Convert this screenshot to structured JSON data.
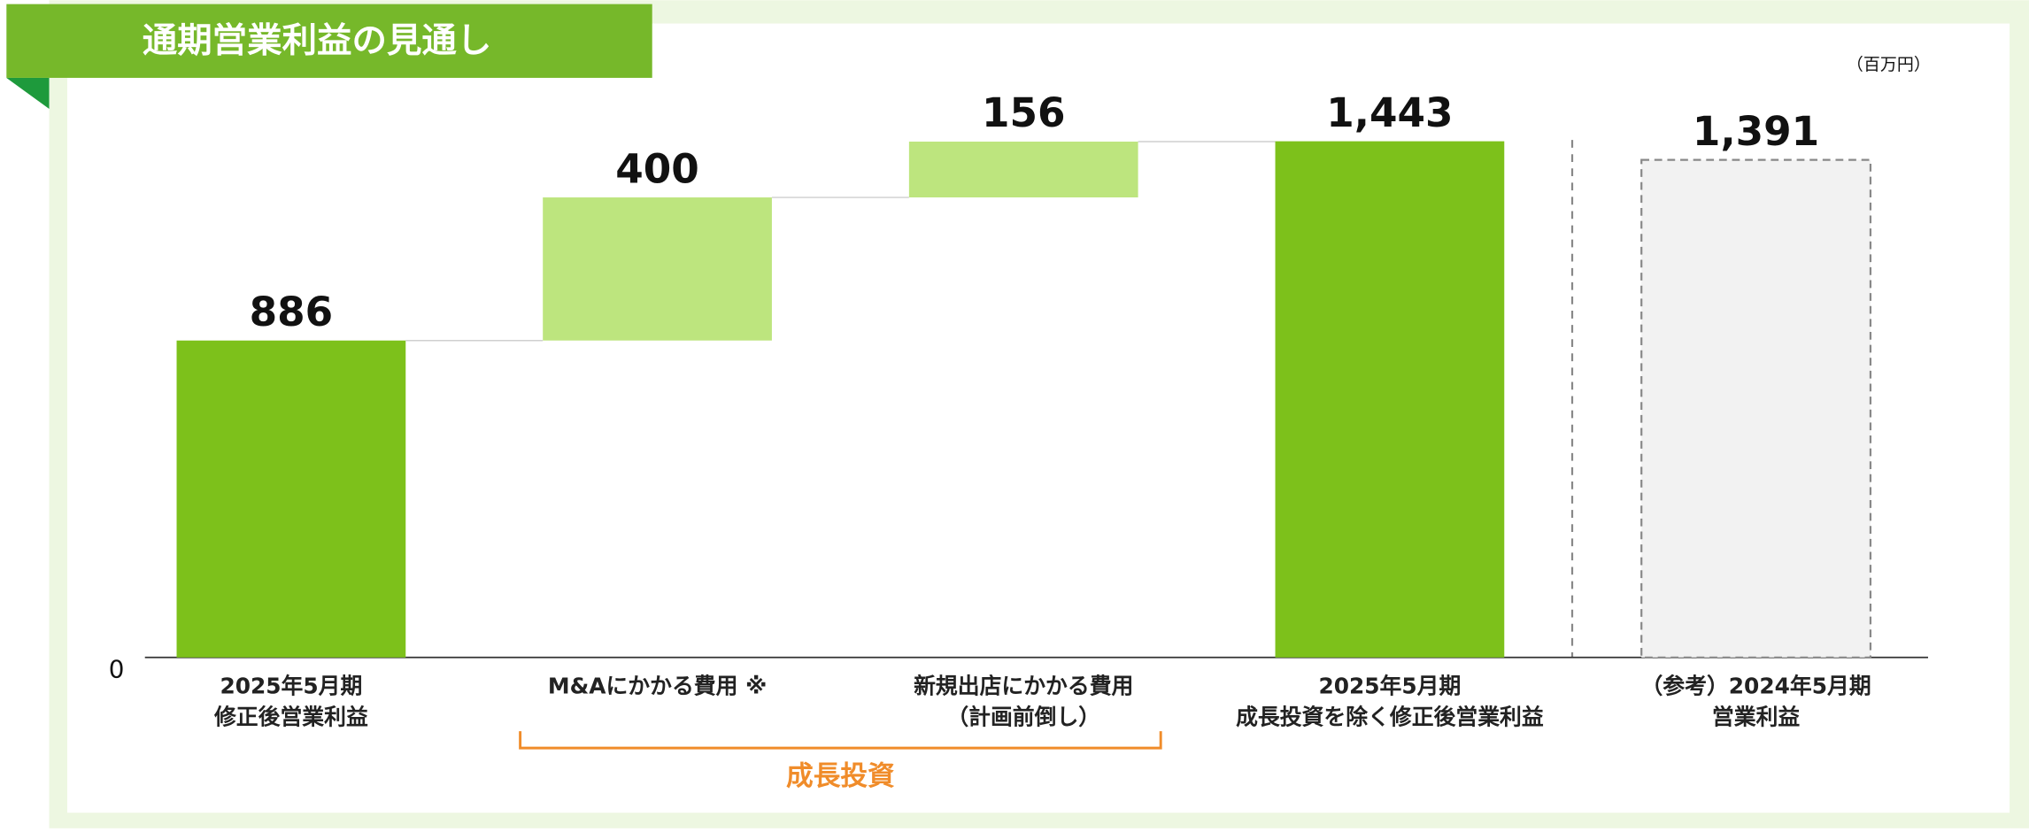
{
  "chart_data": {
    "type": "waterfall",
    "title": "通期営業利益の見通し",
    "unit_label": "（百万円）",
    "categories": [
      [
        "2025年5月期",
        "修正後営業利益"
      ],
      [
        "M&Aにかかる費用 ※"
      ],
      [
        "新規出店にかかる費用",
        "（計画前倒し）"
      ],
      [
        "2025年5月期",
        "成長投資を除く修正後営業利益"
      ],
      [
        "（参考）2024年5月期",
        "営業利益"
      ]
    ],
    "values": [
      886,
      400,
      156,
      1443,
      1391
    ],
    "value_labels": [
      "886",
      "400",
      "156",
      "1,443",
      "1,391"
    ],
    "measures": [
      "absolute",
      "relative",
      "relative",
      "total",
      "reference"
    ],
    "colors": [
      "#7dc11b",
      "#bde57e",
      "#bde57e",
      "#7dc11b",
      "#f2f2f2"
    ],
    "annotation": "成長投資",
    "annotation_color": "#f08c2a",
    "ylim": [
      0,
      1600
    ],
    "yticks": [
      0
    ]
  }
}
